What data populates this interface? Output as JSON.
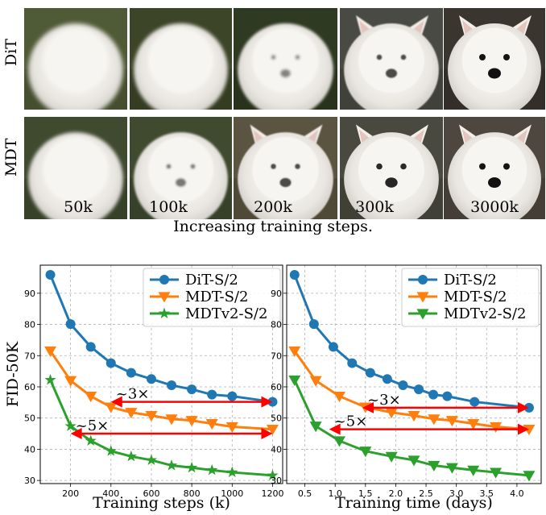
{
  "figure": {
    "row_labels": [
      "DiT",
      "MDT"
    ],
    "step_labels": [
      "50k",
      "100k",
      "200k",
      "300k",
      "3000k"
    ],
    "caption": "Increasing training steps.",
    "image_grid": {
      "rows": [
        "DiT",
        "MDT"
      ],
      "columns": [
        "50k",
        "100k",
        "200k",
        "300k",
        "3000k"
      ],
      "subject": "generated images of a white West Highland terrier",
      "dog_clarity": [
        [
          0.15,
          0.35,
          0.5,
          0.75,
          1.0
        ],
        [
          0.3,
          0.55,
          0.75,
          0.9,
          1.0
        ]
      ]
    }
  },
  "chart_data": [
    {
      "type": "line",
      "xlabel": "Training steps (k)",
      "ylabel": "FID-50K",
      "xlim": [
        50,
        1250
      ],
      "ylim": [
        29,
        99
      ],
      "xticks": [
        200,
        400,
        600,
        800,
        1000,
        1200
      ],
      "yticks": [
        30,
        40,
        50,
        60,
        70,
        80,
        90
      ],
      "grid": true,
      "legend_position": "top-right",
      "series": [
        {
          "name": "DiT-S/2",
          "marker": "circle",
          "color": "#1f77b4",
          "x": [
            100,
            200,
            300,
            400,
            500,
            600,
            700,
            800,
            900,
            1000,
            1200
          ],
          "y": [
            95.9,
            80.1,
            72.8,
            67.6,
            64.5,
            62.5,
            60.5,
            59.2,
            57.5,
            57.0,
            55.2
          ]
        },
        {
          "name": "MDT-S/2",
          "marker": "triangle-down",
          "color": "#ff7f0e",
          "x": [
            100,
            200,
            300,
            400,
            500,
            600,
            700,
            800,
            900,
            1000,
            1200
          ],
          "y": [
            71.5,
            62.0,
            57.0,
            53.5,
            51.8,
            50.8,
            49.7,
            49.2,
            48.2,
            47.2,
            46.4
          ]
        },
        {
          "name": "MDTv2-S/2",
          "marker": "star",
          "color": "#2ca02c",
          "x": [
            100,
            200,
            300,
            400,
            500,
            600,
            700,
            800,
            900,
            1000,
            1200
          ],
          "y": [
            62.2,
            47.4,
            42.7,
            39.4,
            37.7,
            36.5,
            34.8,
            34.1,
            33.3,
            32.6,
            31.6
          ]
        }
      ],
      "annotations": [
        {
          "text": "~3×",
          "y": 55.2,
          "x_from": 1200,
          "x_to": 400
        },
        {
          "text": "~5×",
          "y": 45.0,
          "x_from": 1200,
          "x_to": 200
        }
      ]
    },
    {
      "type": "line",
      "xlabel": "Training time (days)",
      "ylabel": "",
      "xlim": [
        0.2,
        4.4
      ],
      "ylim": [
        29,
        99
      ],
      "xticks": [
        "0.5",
        "1.0",
        "1.5",
        "2.0",
        "2.5",
        "3.0",
        "3.5",
        "4.0"
      ],
      "yticks": [
        30,
        40,
        50,
        60,
        70,
        80,
        90
      ],
      "grid": true,
      "legend_position": "top-right",
      "series": [
        {
          "name": "DiT-S/2",
          "marker": "circle",
          "color": "#1f77b4",
          "x": [
            0.33,
            0.65,
            0.97,
            1.28,
            1.58,
            1.86,
            2.12,
            2.38,
            2.62,
            2.85,
            3.3,
            4.2
          ],
          "y": [
            95.9,
            80.1,
            72.8,
            67.6,
            64.5,
            62.5,
            60.5,
            59.2,
            57.5,
            57.0,
            55.2,
            53.3
          ]
        },
        {
          "name": "MDT-S/2",
          "marker": "triangle-down",
          "color": "#ff7f0e",
          "x": [
            0.33,
            0.68,
            1.07,
            1.5,
            1.93,
            2.3,
            2.63,
            2.93,
            3.28,
            3.65,
            4.2
          ],
          "y": [
            71.5,
            62.0,
            57.0,
            53.5,
            51.8,
            50.8,
            49.7,
            49.2,
            48.2,
            47.2,
            46.4
          ]
        },
        {
          "name": "MDTv2-S/2",
          "marker": "triangle-down",
          "color": "#2ca02c",
          "x": [
            0.33,
            0.68,
            1.07,
            1.5,
            1.93,
            2.3,
            2.63,
            2.93,
            3.28,
            3.65,
            4.2
          ],
          "y": [
            62.2,
            47.4,
            42.7,
            39.4,
            37.7,
            36.5,
            34.8,
            34.1,
            33.3,
            32.6,
            31.6
          ]
        }
      ],
      "annotations": [
        {
          "text": "~3×",
          "y": 53.3,
          "x_from": 4.2,
          "x_to": 1.45
        },
        {
          "text": "~5×",
          "y": 46.4,
          "x_from": 4.2,
          "x_to": 0.9
        }
      ]
    }
  ]
}
